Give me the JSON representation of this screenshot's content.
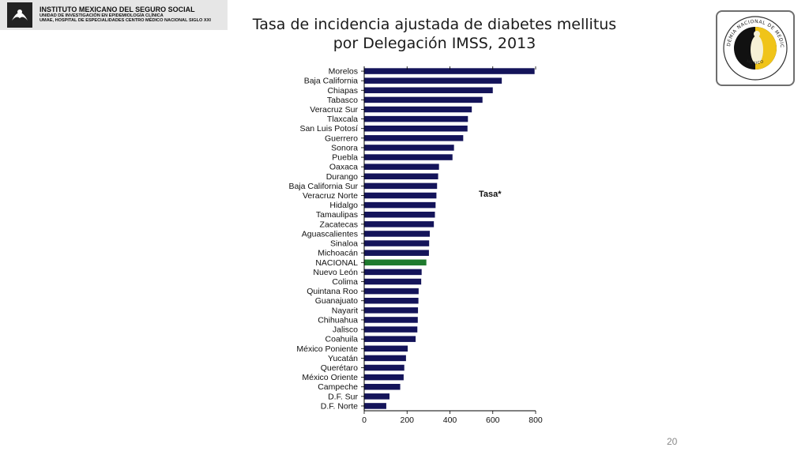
{
  "header": {
    "institution_line1": "INSTITUTO MEXICANO DEL SEGURO SOCIAL",
    "institution_line2": "UNIDAD DE INVESTIGACIÓN EN EPIDEMIOLOGÍA CLÍNICA",
    "institution_line3": "UMAE, HOSPITAL DE ESPECIALIDADES CENTRO MÉDICO NACIONAL SIGLO XXI"
  },
  "slide": {
    "title_line1": "Tasa de incidencia ajustada de diabetes mellitus",
    "title_line2": "por Delegación IMSS, 2013",
    "page_number": "20"
  },
  "academy_logo": {
    "ring_text": "ACADEMIA NACIONAL DE MEDICINA",
    "bottom_text": "MÉXICO"
  },
  "colors": {
    "bar": "#14145a",
    "highlight_bar": "#1f7a2e"
  },
  "chart_data": {
    "type": "bar",
    "orientation": "horizontal",
    "series_label": "Tasa*",
    "highlight_category": "NACIONAL",
    "categories": [
      "Morelos",
      "Baja California",
      "Chiapas",
      "Tabasco",
      "Veracruz Sur",
      "Tlaxcala",
      "San Luis Potosí",
      "Guerrero",
      "Sonora",
      "Puebla",
      "Oaxaca",
      "Durango",
      "Baja California Sur",
      "Veracruz Norte",
      "Hidalgo",
      "Tamaulipas",
      "Zacatecas",
      "Aguascalientes",
      "Sinaloa",
      "Michoacán",
      "NACIONAL",
      "Nuevo León",
      "Colima",
      "Quintana Roo",
      "Guanajuato",
      "Nayarit",
      "Chihuahua",
      "Jalisco",
      "Coahuila",
      "México Poniente",
      "Yucatán",
      "Querétaro",
      "México Oriente",
      "Campeche",
      "D.F. Sur",
      "D.F. Norte"
    ],
    "values": [
      795,
      642,
      600,
      552,
      502,
      484,
      482,
      462,
      419,
      412,
      349,
      345,
      340,
      337,
      333,
      330,
      325,
      306,
      303,
      302,
      290,
      268,
      266,
      254,
      253,
      251,
      250,
      248,
      240,
      203,
      195,
      187,
      184,
      168,
      118,
      103
    ],
    "xlim": [
      0,
      800
    ],
    "xticks": [
      0,
      200,
      400,
      600,
      800
    ],
    "grid": false
  }
}
